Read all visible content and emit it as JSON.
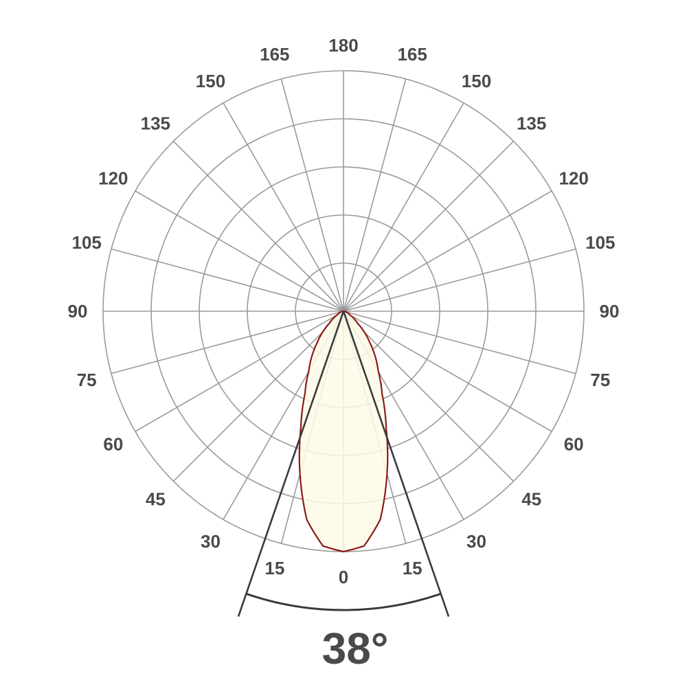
{
  "chart_data": {
    "type": "polar",
    "angle_labels_left": [
      "0",
      "15",
      "30",
      "45",
      "60",
      "75",
      "90",
      "105",
      "120",
      "135",
      "150",
      "165",
      "180"
    ],
    "angle_labels_right": [
      "15",
      "30",
      "45",
      "60",
      "75",
      "90",
      "105",
      "120",
      "135",
      "150",
      "165"
    ],
    "angle_step_deg": 15,
    "rings": 5,
    "grid": true,
    "series": [
      {
        "angles_deg": [
          0,
          5,
          10,
          15,
          20,
          25,
          30,
          40,
          50,
          60,
          75,
          90
        ],
        "relative_intensity": [
          1.0,
          0.98,
          0.88,
          0.7,
          0.52,
          0.38,
          0.29,
          0.17,
          0.075,
          0.03,
          0.01,
          0.0
        ],
        "symmetric": true
      }
    ],
    "beam_angle_deg": 38,
    "beam_angle_label": "38°",
    "colors": {
      "curve": "#8b1a1a",
      "fill": "#fdfbe6",
      "grid": "#9a9a9a",
      "beam_lines": "#3a3a3a",
      "text": "#4a4a4a"
    }
  }
}
